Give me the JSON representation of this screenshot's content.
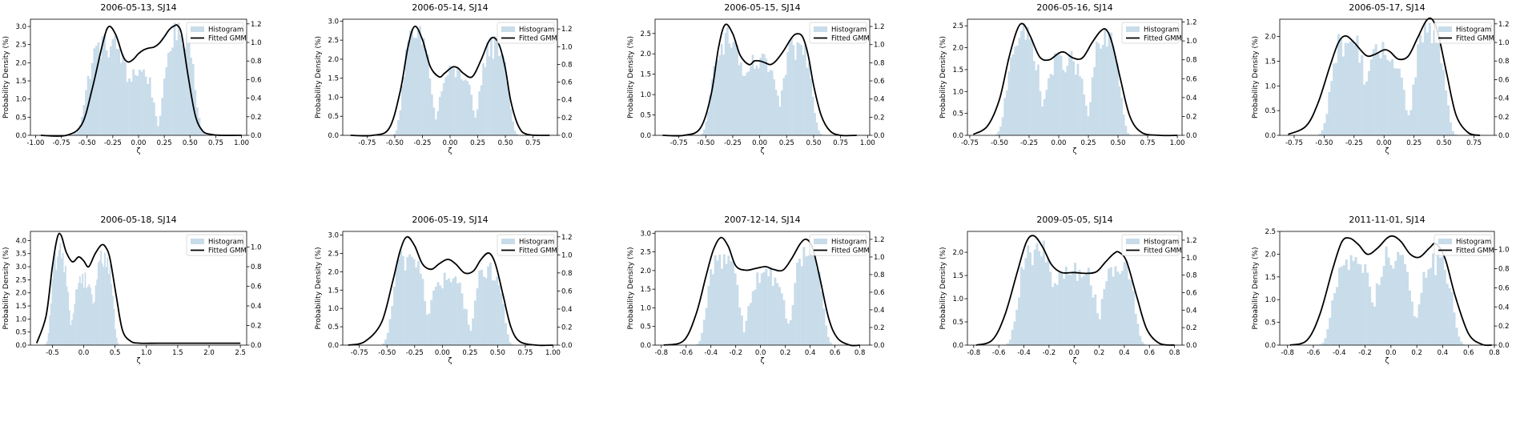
{
  "chart_data": [
    {
      "type": "bar",
      "title": "2006-05-13, SJ14",
      "xlabel": "ζ",
      "ylabel": "Probability Density (%)",
      "xlim": [
        -1.05,
        1.05
      ],
      "xticks": [
        "-1.00",
        "-0.75",
        "-0.50",
        "-0.25",
        "0.00",
        "0.25",
        "0.50",
        "0.75",
        "1.00"
      ],
      "ylim": [
        0,
        3.2
      ],
      "yticks": [
        "0.0",
        "0.5",
        "1.0",
        "1.5",
        "2.0",
        "2.5",
        "3.0"
      ],
      "y2lim": [
        0,
        1.25
      ],
      "y2ticks": [
        "0.0",
        "0.2",
        "0.4",
        "0.6",
        "0.8",
        "1.0",
        "1.2"
      ],
      "hist": {
        "range": [
          -0.72,
          0.78
        ],
        "modes": [
          [
            -0.3,
            0.22,
            2.55
          ],
          [
            0.0,
            0.16,
            1.8
          ],
          [
            0.4,
            0.16,
            2.9
          ]
        ]
      },
      "gmm": {
        "x": [
          -0.95,
          -0.7,
          -0.55,
          -0.45,
          -0.35,
          -0.29,
          -0.22,
          -0.15,
          -0.1,
          -0.05,
          0.0,
          0.05,
          0.1,
          0.15,
          0.2,
          0.25,
          0.3,
          0.35,
          0.38,
          0.42,
          0.48,
          0.55,
          0.62,
          0.7,
          0.8,
          1.0
        ],
        "y": [
          0.0,
          0.0,
          0.12,
          0.5,
          0.98,
          1.17,
          1.08,
          0.85,
          0.79,
          0.82,
          0.88,
          0.92,
          0.94,
          0.95,
          0.99,
          1.06,
          1.14,
          1.18,
          1.18,
          1.08,
          0.65,
          0.22,
          0.05,
          0.01,
          0.0,
          0.0
        ]
      },
      "legend": [
        "Histogram",
        "Fitted GMM"
      ],
      "legend_position": "top-right"
    },
    {
      "type": "bar",
      "title": "2006-05-14, SJ14",
      "xlabel": "ζ",
      "ylabel": "Probability Density (%)",
      "xlim": [
        -0.97,
        0.97
      ],
      "xticks": [
        "-0.75",
        "-0.50",
        "-0.25",
        "0.00",
        "0.25",
        "0.50",
        "0.75"
      ],
      "ylim": [
        0,
        3.05
      ],
      "yticks": [
        "0.0",
        "0.5",
        "1.0",
        "1.5",
        "2.0",
        "2.5",
        "3.0"
      ],
      "y2lim": [
        0,
        1.31
      ],
      "y2ticks": [
        "0.0",
        "0.2",
        "0.4",
        "0.6",
        "0.8",
        "1.0",
        "1.2"
      ],
      "hist": {
        "range": [
          -0.62,
          0.72
        ],
        "modes": [
          [
            -0.3,
            0.14,
            2.6
          ],
          [
            0.05,
            0.16,
            1.7
          ],
          [
            0.4,
            0.14,
            2.4
          ]
        ]
      },
      "gmm": {
        "x": [
          -0.9,
          -0.7,
          -0.55,
          -0.45,
          -0.38,
          -0.32,
          -0.25,
          -0.18,
          -0.1,
          -0.05,
          0.02,
          0.07,
          0.12,
          0.2,
          0.28,
          0.35,
          0.4,
          0.45,
          0.5,
          0.55,
          0.62,
          0.7,
          0.9
        ],
        "y": [
          0.0,
          0.0,
          0.08,
          0.5,
          1.0,
          1.23,
          1.08,
          0.78,
          0.66,
          0.7,
          0.77,
          0.76,
          0.7,
          0.66,
          0.85,
          1.06,
          1.1,
          1.0,
          0.75,
          0.38,
          0.1,
          0.01,
          0.0
        ]
      },
      "legend": [
        "Histogram",
        "Fitted GMM"
      ],
      "legend_position": "top-right"
    },
    {
      "type": "bar",
      "title": "2006-05-15, SJ14",
      "xlabel": "ζ",
      "ylabel": "Probability Density (%)",
      "xlim": [
        -0.97,
        1.02
      ],
      "xticks": [
        "-0.75",
        "-0.50",
        "-0.25",
        "0.00",
        "0.25",
        "0.50",
        "0.75",
        "1.00"
      ],
      "ylim": [
        0,
        2.85
      ],
      "yticks": [
        "0.0",
        "0.5",
        "1.0",
        "1.5",
        "2.0",
        "2.5"
      ],
      "y2lim": [
        0,
        1.28
      ],
      "y2ticks": [
        "0.0",
        "0.2",
        "0.4",
        "0.6",
        "0.8",
        "1.0",
        "1.2"
      ],
      "hist": {
        "range": [
          -0.65,
          0.7
        ],
        "modes": [
          [
            -0.3,
            0.16,
            2.4
          ],
          [
            0.0,
            0.18,
            1.8
          ],
          [
            0.35,
            0.15,
            2.2
          ]
        ]
      },
      "gmm": {
        "x": [
          -0.9,
          -0.7,
          -0.55,
          -0.45,
          -0.38,
          -0.32,
          -0.25,
          -0.18,
          -0.1,
          -0.05,
          0.0,
          0.05,
          0.1,
          0.15,
          0.22,
          0.3,
          0.35,
          0.4,
          0.45,
          0.5,
          0.57,
          0.65,
          0.75,
          0.9
        ],
        "y": [
          0.0,
          0.0,
          0.08,
          0.45,
          0.98,
          1.22,
          1.12,
          0.88,
          0.78,
          0.82,
          0.82,
          0.8,
          0.78,
          0.82,
          0.93,
          1.08,
          1.12,
          1.08,
          0.88,
          0.55,
          0.22,
          0.05,
          0.0,
          0.0
        ]
      },
      "legend": [
        "Histogram",
        "Fitted GMM"
      ],
      "legend_position": "top-right"
    },
    {
      "type": "bar",
      "title": "2006-05-16, SJ14",
      "xlabel": "ζ",
      "ylabel": "Probability Density (%)",
      "xlim": [
        -0.77,
        1.04
      ],
      "xticks": [
        "-0.75",
        "-0.50",
        "-0.25",
        "0.00",
        "0.25",
        "0.50",
        "0.75",
        "1.00"
      ],
      "ylim": [
        0,
        2.65
      ],
      "yticks": [
        "0.0",
        "0.5",
        "1.0",
        "1.5",
        "2.0",
        "2.5"
      ],
      "y2lim": [
        0,
        1.23
      ],
      "y2ticks": [
        "0.0",
        "0.2",
        "0.4",
        "0.6",
        "0.8",
        "1.0",
        "1.2"
      ],
      "hist": {
        "range": [
          -0.64,
          0.68
        ],
        "modes": [
          [
            -0.3,
            0.15,
            2.3
          ],
          [
            0.05,
            0.18,
            1.75
          ],
          [
            0.4,
            0.13,
            2.2
          ]
        ]
      },
      "gmm": {
        "x": [
          -0.72,
          -0.6,
          -0.5,
          -0.42,
          -0.35,
          -0.3,
          -0.24,
          -0.16,
          -0.08,
          0.0,
          0.05,
          0.12,
          0.2,
          0.28,
          0.35,
          0.4,
          0.45,
          0.52,
          0.6,
          0.7,
          0.85,
          1.0
        ],
        "y": [
          0.01,
          0.1,
          0.38,
          0.82,
          1.12,
          1.18,
          1.05,
          0.83,
          0.8,
          0.87,
          0.88,
          0.82,
          0.82,
          0.98,
          1.1,
          1.12,
          0.98,
          0.6,
          0.2,
          0.03,
          0.0,
          0.0
        ]
      },
      "legend": [
        "Histogram",
        "Fitted GMM"
      ],
      "legend_position": "top-right"
    },
    {
      "type": "bar",
      "title": "2006-05-17, SJ14",
      "xlabel": "ζ",
      "ylabel": "Probability Density (%)",
      "xlim": [
        -0.87,
        0.92
      ],
      "xticks": [
        "-0.75",
        "-0.50",
        "-0.25",
        "0.00",
        "0.25",
        "0.50",
        "0.75"
      ],
      "ylim": [
        0,
        2.35
      ],
      "yticks": [
        "0.0",
        "0.5",
        "1.0",
        "1.5",
        "2.0"
      ],
      "y2lim": [
        0,
        1.25
      ],
      "y2ticks": [
        "0.0",
        "0.2",
        "0.4",
        "0.6",
        "0.8",
        "1.0",
        "1.2"
      ],
      "hist": {
        "range": [
          -0.72,
          0.74
        ],
        "modes": [
          [
            -0.3,
            0.16,
            1.95
          ],
          [
            0.0,
            0.18,
            1.7
          ],
          [
            0.38,
            0.14,
            2.15
          ]
        ]
      },
      "gmm": {
        "x": [
          -0.8,
          -0.65,
          -0.55,
          -0.45,
          -0.38,
          -0.32,
          -0.25,
          -0.15,
          -0.08,
          0.0,
          0.05,
          0.12,
          0.2,
          0.28,
          0.35,
          0.4,
          0.45,
          0.52,
          0.6,
          0.7,
          0.8
        ],
        "y": [
          0.01,
          0.1,
          0.35,
          0.75,
          1.0,
          1.07,
          1.0,
          0.86,
          0.87,
          0.92,
          0.9,
          0.82,
          0.85,
          1.05,
          1.23,
          1.25,
          1.1,
          0.68,
          0.22,
          0.03,
          0.0
        ]
      },
      "legend": [
        "Histogram",
        "Fitted GMM"
      ],
      "legend_position": "top-right"
    },
    {
      "type": "bar",
      "title": "2006-05-18, SJ14",
      "xlabel": "ζ",
      "ylabel": "Probability Density (%)",
      "xlim": [
        -0.85,
        2.6
      ],
      "xticks": [
        "-0.5",
        "0.0",
        "0.5",
        "1.0",
        "1.5",
        "2.0",
        "2.5"
      ],
      "ylim": [
        0,
        4.35
      ],
      "yticks": [
        "0.0",
        "0.5",
        "1.0",
        "1.5",
        "2.0",
        "2.5",
        "3.0",
        "3.5",
        "4.0"
      ],
      "y2lim": [
        0,
        1.16
      ],
      "y2ticks": [
        "0.0",
        "0.2",
        "0.4",
        "0.6",
        "0.8",
        "1.0"
      ],
      "hist": {
        "range": [
          -0.72,
          0.85
        ],
        "modes": [
          [
            -0.38,
            0.15,
            3.5
          ],
          [
            0.0,
            0.18,
            2.6
          ],
          [
            0.32,
            0.16,
            3.4
          ]
        ]
      },
      "gmm": {
        "x": [
          -0.75,
          -0.6,
          -0.5,
          -0.42,
          -0.36,
          -0.28,
          -0.18,
          -0.08,
          0.0,
          0.08,
          0.18,
          0.28,
          0.35,
          0.42,
          0.52,
          0.62,
          0.75,
          0.9,
          1.2,
          1.8,
          2.5
        ],
        "y": [
          0.02,
          0.3,
          0.8,
          1.1,
          1.12,
          0.95,
          0.85,
          0.9,
          0.86,
          0.8,
          0.93,
          1.02,
          1.0,
          0.88,
          0.5,
          0.15,
          0.04,
          0.02,
          0.02,
          0.02,
          0.02
        ]
      },
      "legend": [
        "Histogram",
        "Fitted GMM"
      ],
      "legend_position": "top-right"
    },
    {
      "type": "bar",
      "title": "2006-05-19, SJ14",
      "xlabel": "ζ",
      "ylabel": "Probability Density (%)",
      "xlim": [
        -0.9,
        1.04
      ],
      "xticks": [
        "-0.75",
        "-0.50",
        "-0.25",
        "0.00",
        "0.25",
        "0.50",
        "0.75",
        "1.00"
      ],
      "ylim": [
        0,
        3.1
      ],
      "yticks": [
        "0.0",
        "0.5",
        "1.0",
        "1.5",
        "2.0",
        "2.5",
        "3.0"
      ],
      "y2lim": [
        0,
        1.26
      ],
      "y2ticks": [
        "0.0",
        "0.2",
        "0.4",
        "0.6",
        "0.8",
        "1.0",
        "1.2"
      ],
      "hist": {
        "range": [
          -0.72,
          0.76
        ],
        "modes": [
          [
            -0.3,
            0.16,
            2.45
          ],
          [
            0.05,
            0.18,
            1.8
          ],
          [
            0.42,
            0.14,
            2.1
          ]
        ]
      },
      "gmm": {
        "x": [
          -0.85,
          -0.7,
          -0.55,
          -0.45,
          -0.38,
          -0.32,
          -0.25,
          -0.18,
          -0.1,
          -0.03,
          0.05,
          0.12,
          0.2,
          0.28,
          0.35,
          0.42,
          0.48,
          0.55,
          0.62,
          0.7,
          0.85,
          1.0
        ],
        "y": [
          0.0,
          0.04,
          0.25,
          0.7,
          1.05,
          1.2,
          1.1,
          0.9,
          0.84,
          0.9,
          0.95,
          0.9,
          0.8,
          0.82,
          0.95,
          1.02,
          0.9,
          0.55,
          0.2,
          0.04,
          0.0,
          0.0
        ]
      },
      "legend": [
        "Histogram",
        "Fitted GMM"
      ],
      "legend_position": "top-right"
    },
    {
      "type": "bar",
      "title": "2007-12-14, SJ14",
      "xlabel": "ζ",
      "ylabel": "Probability Density (%)",
      "xlim": [
        -0.85,
        0.88
      ],
      "xticks": [
        "-0.8",
        "-0.6",
        "-0.4",
        "-0.2",
        "0.0",
        "0.2",
        "0.4",
        "0.6",
        "0.8"
      ],
      "ylim": [
        0,
        3.05
      ],
      "yticks": [
        "0.0",
        "0.5",
        "1.0",
        "1.5",
        "2.0",
        "2.5",
        "3.0"
      ],
      "y2lim": [
        0,
        1.29
      ],
      "y2ticks": [
        "0.0",
        "0.2",
        "0.4",
        "0.6",
        "0.8",
        "1.0",
        "1.2"
      ],
      "hist": {
        "range": [
          -0.66,
          0.68
        ],
        "modes": [
          [
            -0.3,
            0.14,
            2.45
          ],
          [
            0.05,
            0.16,
            1.9
          ],
          [
            0.38,
            0.13,
            2.5
          ]
        ]
      },
      "gmm": {
        "x": [
          -0.78,
          -0.62,
          -0.52,
          -0.44,
          -0.38,
          -0.32,
          -0.26,
          -0.2,
          -0.12,
          -0.04,
          0.04,
          0.1,
          0.18,
          0.25,
          0.32,
          0.37,
          0.42,
          0.48,
          0.55,
          0.62,
          0.72,
          0.8
        ],
        "y": [
          0.0,
          0.05,
          0.35,
          0.78,
          1.08,
          1.22,
          1.12,
          0.9,
          0.85,
          0.87,
          0.89,
          0.86,
          0.85,
          0.98,
          1.15,
          1.2,
          1.1,
          0.75,
          0.3,
          0.08,
          0.0,
          0.0
        ]
      },
      "legend": [
        "Histogram",
        "Fitted GMM"
      ],
      "legend_position": "top-right"
    },
    {
      "type": "bar",
      "title": "2009-05-05, SJ14",
      "xlabel": "ζ",
      "ylabel": "Probability Density (%)",
      "xlim": [
        -0.85,
        0.86
      ],
      "xticks": [
        "-0.8",
        "-0.6",
        "-0.4",
        "-0.2",
        "0.0",
        "0.2",
        "0.4",
        "0.6",
        "0.8"
      ],
      "ylim": [
        0,
        2.45
      ],
      "yticks": [
        "0.0",
        "0.5",
        "1.0",
        "1.5",
        "2.0"
      ],
      "y2lim": [
        0,
        1.3
      ],
      "y2ticks": [
        "0.0",
        "0.2",
        "0.4",
        "0.6",
        "0.8",
        "1.0",
        "1.2"
      ],
      "hist": {
        "range": [
          -0.68,
          0.66
        ],
        "modes": [
          [
            -0.3,
            0.16,
            2.05
          ],
          [
            0.0,
            0.2,
            1.65
          ],
          [
            0.35,
            0.14,
            1.8
          ]
        ]
      },
      "gmm": {
        "x": [
          -0.78,
          -0.65,
          -0.55,
          -0.45,
          -0.38,
          -0.32,
          -0.25,
          -0.18,
          -0.1,
          0.0,
          0.1,
          0.18,
          0.25,
          0.32,
          0.36,
          0.42,
          0.5,
          0.58,
          0.68,
          0.8
        ],
        "y": [
          0.0,
          0.06,
          0.35,
          0.85,
          1.18,
          1.25,
          1.12,
          0.92,
          0.83,
          0.83,
          0.82,
          0.84,
          0.95,
          1.05,
          1.06,
          0.95,
          0.55,
          0.18,
          0.02,
          0.0
        ]
      },
      "legend": [
        "Histogram",
        "Fitted GMM"
      ],
      "legend_position": "top-right"
    },
    {
      "type": "bar",
      "title": "2011-11-01, SJ14",
      "xlabel": "ζ",
      "ylabel": "Probability Density (%)",
      "xlim": [
        -0.86,
        0.8
      ],
      "xticks": [
        "-0.8",
        "-0.6",
        "-0.4",
        "-0.2",
        "0.0",
        "0.2",
        "0.4",
        "0.6",
        "0.8"
      ],
      "ylim": [
        0,
        2.5
      ],
      "yticks": [
        "0.0",
        "0.5",
        "1.0",
        "1.5",
        "2.0",
        "2.5"
      ],
      "y2lim": [
        0,
        1.19
      ],
      "y2ticks": [
        "0.0",
        "0.2",
        "0.4",
        "0.6",
        "0.8",
        "1.0"
      ],
      "hist": {
        "range": [
          -0.68,
          0.68
        ],
        "modes": [
          [
            -0.3,
            0.16,
            1.95
          ],
          [
            0.02,
            0.15,
            2.05
          ],
          [
            0.35,
            0.14,
            1.85
          ]
        ]
      },
      "gmm": {
        "x": [
          -0.78,
          -0.65,
          -0.55,
          -0.45,
          -0.38,
          -0.32,
          -0.25,
          -0.18,
          -0.1,
          -0.03,
          0.02,
          0.08,
          0.15,
          0.22,
          0.3,
          0.35,
          0.42,
          0.5,
          0.6,
          0.7,
          0.78
        ],
        "y": [
          0.0,
          0.05,
          0.32,
          0.8,
          1.08,
          1.12,
          1.05,
          0.95,
          1.02,
          1.12,
          1.14,
          1.08,
          0.95,
          0.92,
          1.02,
          1.06,
          0.9,
          0.5,
          0.12,
          0.01,
          0.0
        ]
      },
      "legend": [
        "Histogram",
        "Fitted GMM"
      ],
      "legend_position": "top-right"
    }
  ],
  "colors": {
    "histogram": "#c8dcea",
    "gmm": "#000000",
    "axis": "#000000"
  }
}
